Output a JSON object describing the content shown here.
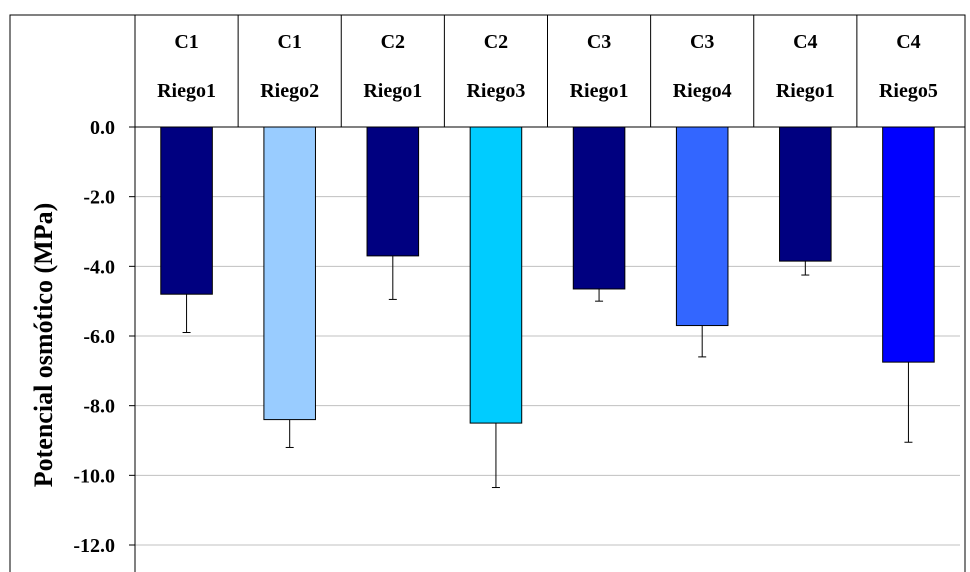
{
  "chart_data": {
    "type": "bar",
    "title": "",
    "xlabel": "",
    "ylabel": "Potencial osmótico (MPa)",
    "ylim": [
      -12.0,
      0.0
    ],
    "yticks": [
      "0.0",
      "-2.0",
      "-4.0",
      "-6.0",
      "-8.0",
      "-10.0",
      "-12.0"
    ],
    "ytick_values": [
      0,
      -2,
      -4,
      -6,
      -8,
      -10,
      -12
    ],
    "grid": "horizontal",
    "x_axis_position": "top",
    "categories": [
      {
        "line1": "C1",
        "line2": "Riego1"
      },
      {
        "line1": "C1",
        "line2": "Riego2"
      },
      {
        "line1": "C2",
        "line2": "Riego1"
      },
      {
        "line1": "C2",
        "line2": "Riego3"
      },
      {
        "line1": "C3",
        "line2": "Riego1"
      },
      {
        "line1": "C3",
        "line2": "Riego4"
      },
      {
        "line1": "C4",
        "line2": "Riego1"
      },
      {
        "line1": "C4",
        "line2": "Riego5"
      }
    ],
    "values": [
      -4.8,
      -8.4,
      -3.7,
      -8.5,
      -4.65,
      -5.7,
      -3.85,
      -6.75
    ],
    "error": [
      1.1,
      0.8,
      1.25,
      1.85,
      0.35,
      0.9,
      0.4,
      2.3
    ],
    "colors": [
      "#000080",
      "#99CCFF",
      "#000080",
      "#00CCFF",
      "#000080",
      "#3366FF",
      "#000080",
      "#0000FF"
    ]
  }
}
